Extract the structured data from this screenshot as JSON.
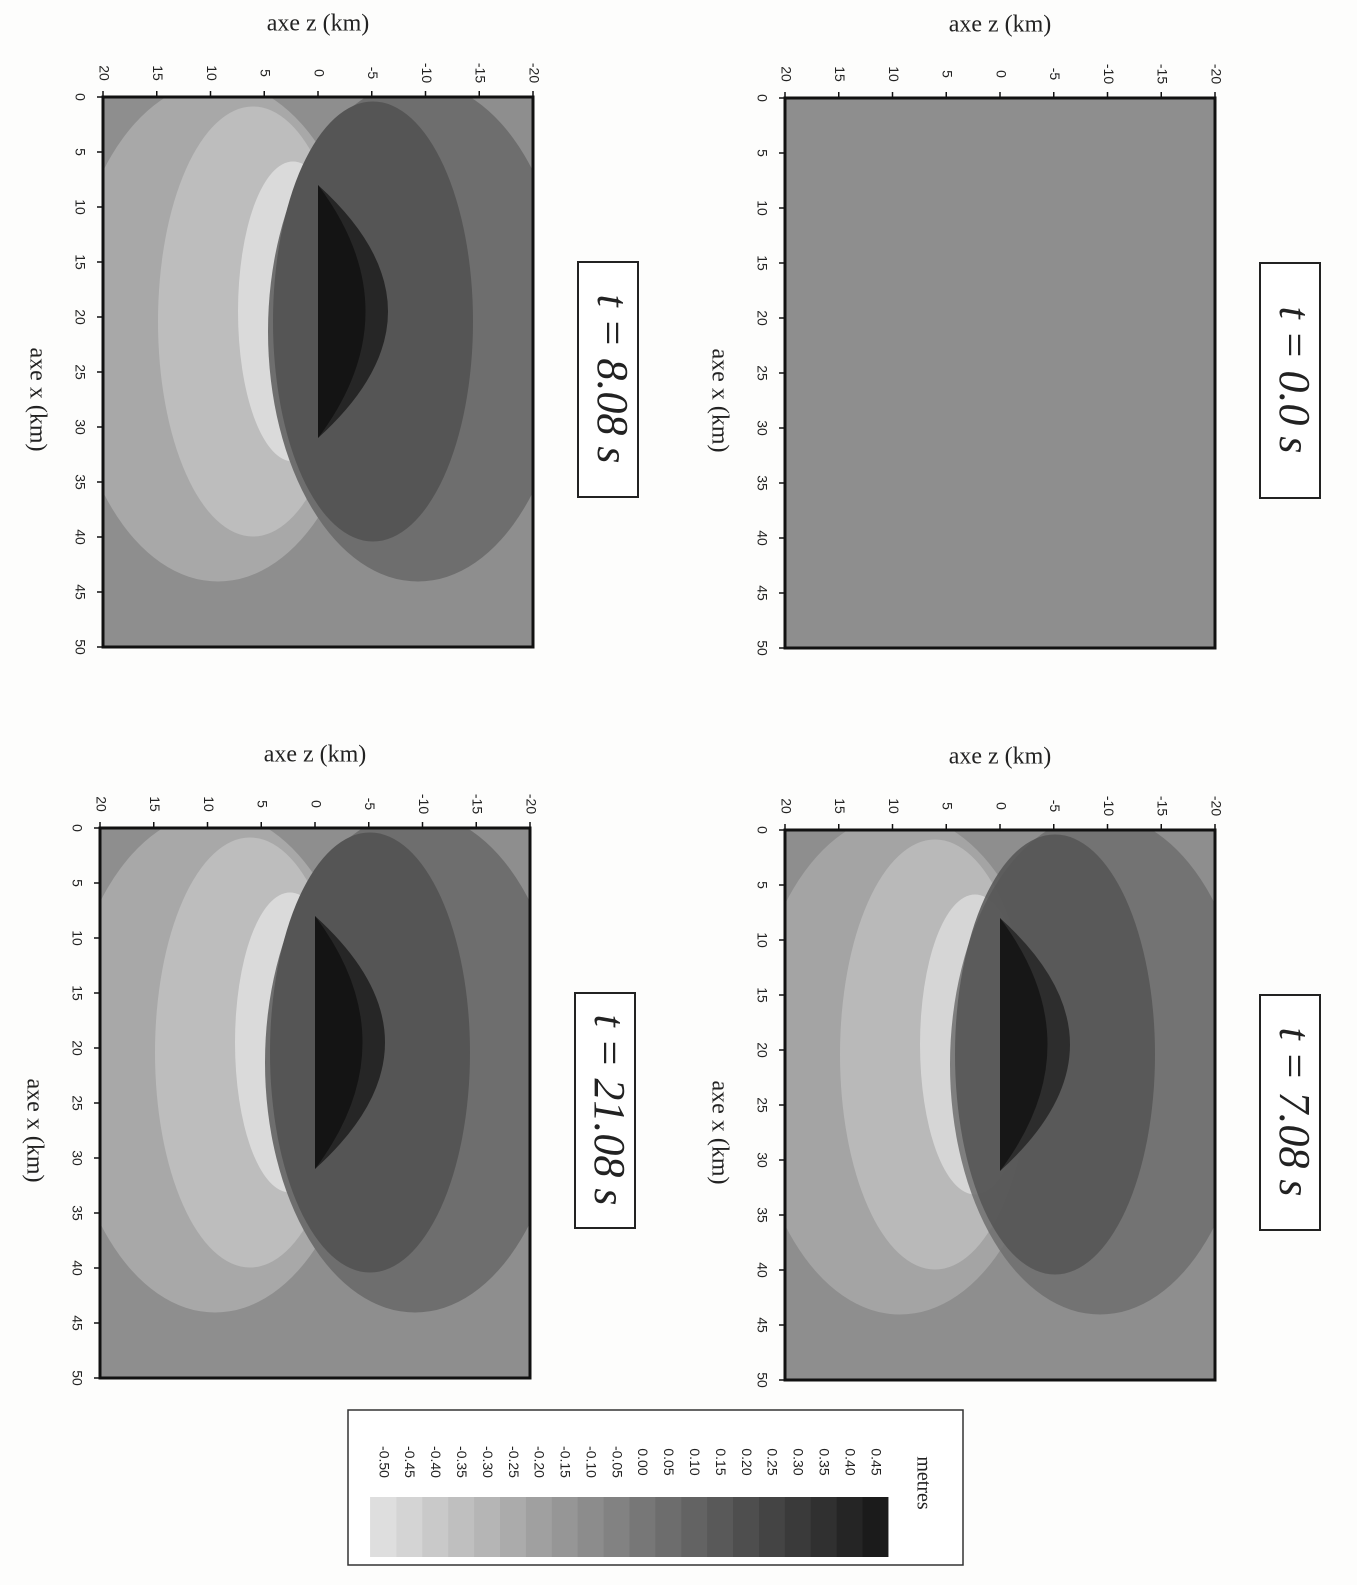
{
  "figure": {
    "panels": [
      {
        "time_label": "t = 0.0 s",
        "z_label": "axe z (km)",
        "x_label": "axe x (km)",
        "zlim": [
          20,
          -20
        ],
        "zticks": [
          20,
          15,
          10,
          5,
          0,
          -5,
          -10,
          -15,
          -20
        ],
        "xlim": [
          0,
          50
        ],
        "xticks": [
          0,
          5,
          10,
          15,
          20,
          25,
          30,
          35,
          40,
          45,
          50
        ]
      },
      {
        "time_label": "t = 8.08 s",
        "z_label": "axe z (km)",
        "x_label": "axe x (km)",
        "zlim": [
          20,
          -20
        ],
        "zticks": [
          20,
          15,
          10,
          5,
          0,
          -5,
          -10,
          -15,
          -20
        ],
        "xlim": [
          0,
          50
        ],
        "xticks": [
          0,
          5,
          10,
          15,
          20,
          25,
          30,
          35,
          40,
          45,
          50
        ]
      },
      {
        "time_label": "t = 7.08 s",
        "z_label": "axe z (km)",
        "x_label": "axe x (km)",
        "zlim": [
          20,
          -20
        ],
        "zticks": [
          20,
          15,
          10,
          5,
          0,
          -5,
          -10,
          -15,
          -20
        ],
        "xlim": [
          0,
          50
        ],
        "xticks": [
          0,
          5,
          10,
          15,
          20,
          25,
          30,
          35,
          40,
          45,
          50
        ]
      },
      {
        "time_label": "t = 21.08 s",
        "z_label": "axe z (km)",
        "x_label": "axe x (km)",
        "zlim": [
          20,
          -20
        ],
        "zticks": [
          20,
          15,
          10,
          5,
          0,
          -5,
          -10,
          -15,
          -20
        ],
        "xlim": [
          0,
          50
        ],
        "xticks": [
          0,
          5,
          10,
          15,
          20,
          25,
          30,
          35,
          40,
          45,
          50
        ]
      }
    ],
    "colorbar": {
      "unit": "metres",
      "ticks": [
        {
          "value": 0.45,
          "label": "0.45"
        },
        {
          "value": 0.4,
          "label": "0.40"
        },
        {
          "value": 0.35,
          "label": "0.35"
        },
        {
          "value": 0.3,
          "label": "0.30"
        },
        {
          "value": 0.25,
          "label": "0.25"
        },
        {
          "value": 0.2,
          "label": "0.20"
        },
        {
          "value": 0.15,
          "label": "0.15"
        },
        {
          "value": 0.1,
          "label": "0.10"
        },
        {
          "value": 0.05,
          "label": "0.05"
        },
        {
          "value": 0,
          "label": "0.00"
        },
        {
          "value": -0.05,
          "label": "-0.05"
        },
        {
          "value": -0.1,
          "label": "-0.10"
        },
        {
          "value": -0.15,
          "label": "-0.15"
        },
        {
          "value": -0.2,
          "label": "-0.20"
        },
        {
          "value": -0.25,
          "label": "-0.25"
        },
        {
          "value": -0.3,
          "label": "-0.30"
        },
        {
          "value": -0.35,
          "label": "-0.35"
        },
        {
          "value": -0.4,
          "label": "-0.40"
        },
        {
          "value": -0.45,
          "label": "-0.45"
        },
        {
          "value": -0.5,
          "label": "-0.50"
        }
      ]
    }
  }
}
